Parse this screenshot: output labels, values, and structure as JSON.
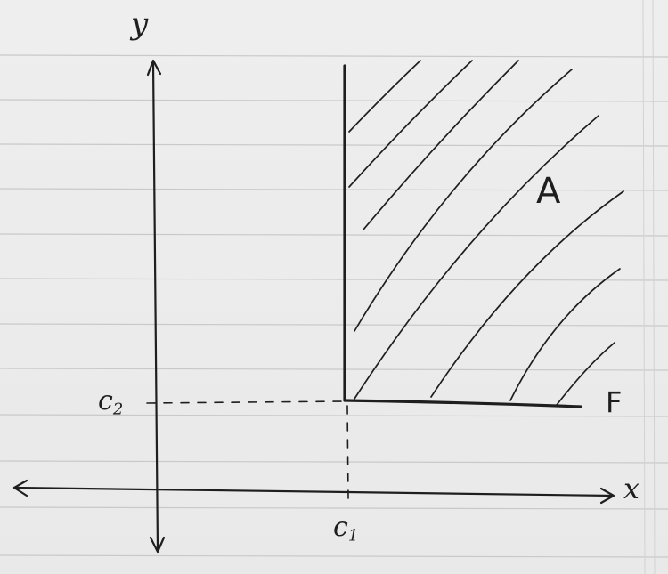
{
  "labels": {
    "y_axis": "y",
    "x_axis": "x",
    "region": "A",
    "boundary": "F",
    "c1_main": "c",
    "c1_sub": "1",
    "c2_main": "c",
    "c2_sub": "2"
  }
}
